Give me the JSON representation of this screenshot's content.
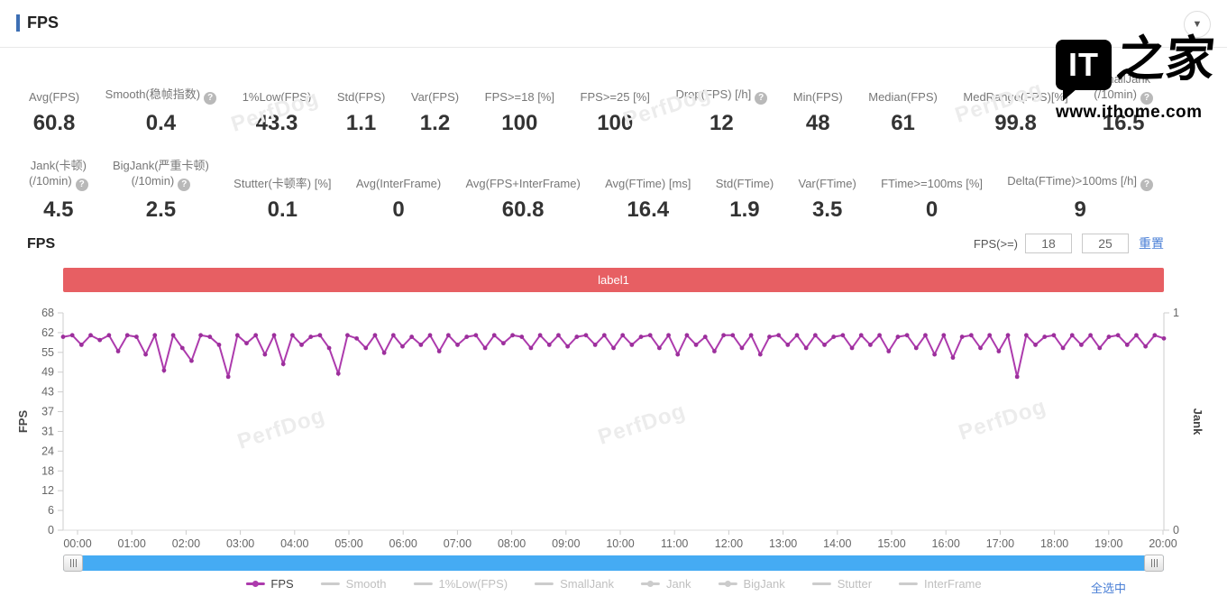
{
  "page": {
    "title": "FPS",
    "collapse_icon": "▼"
  },
  "watermark": {
    "text": "PerfDog"
  },
  "logo": {
    "it": "IT",
    "zhijia": "之家",
    "url": "www.ithome.com"
  },
  "stats": {
    "row1": [
      {
        "label": "Avg(FPS)",
        "value": "60.8"
      },
      {
        "label": "Smooth(稳帧指数)",
        "value": "0.4",
        "help": true
      },
      {
        "label": "1%Low(FPS)",
        "value": "43.3"
      },
      {
        "label": "Std(FPS)",
        "value": "1.1"
      },
      {
        "label": "Var(FPS)",
        "value": "1.2"
      },
      {
        "label": "FPS>=18 [%]",
        "value": "100"
      },
      {
        "label": "FPS>=25 [%]",
        "value": "100"
      },
      {
        "label": "Drop(FPS) [/h]",
        "value": "12",
        "help": true
      },
      {
        "label": "Min(FPS)",
        "value": "48"
      },
      {
        "label": "Median(FPS)",
        "value": "61"
      },
      {
        "label": "MedRange(FPS)[%]",
        "value": "99.8"
      },
      {
        "label": "SmallJank",
        "label2": "(/10min)",
        "value": "16.5",
        "help": true
      }
    ],
    "row2": [
      {
        "label": "Jank(卡顿)",
        "label2": "(/10min)",
        "value": "4.5",
        "help": true
      },
      {
        "label": "BigJank(严重卡顿)",
        "label2": "(/10min)",
        "value": "2.5",
        "help": true
      },
      {
        "label": "Stutter(卡顿率) [%]",
        "value": "0.1"
      },
      {
        "label": "Avg(InterFrame)",
        "value": "0"
      },
      {
        "label": "Avg(FPS+InterFrame)",
        "value": "60.8"
      },
      {
        "label": "Avg(FTime) [ms]",
        "value": "16.4"
      },
      {
        "label": "Std(FTime)",
        "value": "1.9"
      },
      {
        "label": "Var(FTime)",
        "value": "3.5"
      },
      {
        "label": "FTime>=100ms [%]",
        "value": "0"
      },
      {
        "label": "Delta(FTime)>100ms [/h]",
        "value": "9",
        "help": true
      }
    ]
  },
  "chart_section": {
    "title": "FPS",
    "filter_label": "FPS(>=)",
    "filter_low": "18",
    "filter_high": "25",
    "reset_label": "重置",
    "banner_text": "label1",
    "banner_color": "#e75f63"
  },
  "chart_data": {
    "type": "line",
    "title": "label1",
    "x_ticks": [
      "00:00",
      "01:00",
      "02:00",
      "03:00",
      "04:00",
      "05:00",
      "06:00",
      "07:00",
      "08:00",
      "09:00",
      "10:00",
      "11:00",
      "12:00",
      "13:00",
      "14:00",
      "15:00",
      "16:00",
      "17:00",
      "18:00",
      "19:00",
      "20:00"
    ],
    "y_left": {
      "label": "FPS",
      "range": [
        0,
        68
      ],
      "tick_labels": [
        0,
        6,
        12,
        18,
        24,
        31,
        37,
        43,
        49,
        55,
        62,
        68
      ]
    },
    "y_right": {
      "label": "Jank",
      "range": [
        0,
        1
      ],
      "tick_labels": [
        0,
        1
      ]
    },
    "grid": false,
    "legend_position": "bottom",
    "series": [
      {
        "name": "FPS",
        "color": "#ad3bad",
        "dot_color": "#9c2f9c",
        "sample_interval_sec": 10,
        "values": [
          60.5,
          61,
          58,
          61,
          59.5,
          61,
          56,
          61,
          60.5,
          55,
          61,
          50,
          61,
          57,
          53,
          61,
          60.5,
          58,
          48,
          61,
          58.5,
          61,
          55,
          61,
          52,
          61,
          58,
          60.5,
          61,
          57,
          49,
          61,
          60,
          57,
          61,
          55.5,
          61,
          57.5,
          60.5,
          58,
          61,
          56,
          61,
          58,
          60.5,
          61,
          57,
          61,
          58.5,
          61,
          60.5,
          57,
          61,
          58,
          61,
          57.5,
          60.5,
          61,
          58,
          61,
          57,
          61,
          58,
          60.5,
          61,
          57,
          61,
          55,
          61,
          58,
          60.5,
          56,
          61,
          61,
          57,
          61,
          55,
          60.5,
          61,
          58,
          61,
          57,
          61,
          58,
          60.5,
          61,
          57,
          61,
          58,
          61,
          56,
          60.5,
          61,
          57,
          61,
          55,
          61,
          54,
          60.5,
          61,
          57,
          61,
          56,
          61,
          48,
          61,
          58,
          60.5,
          61,
          57,
          61,
          58,
          61,
          57,
          60.5,
          61,
          58,
          61,
          57.5,
          61,
          60
        ]
      }
    ]
  },
  "legend": {
    "items": [
      {
        "label": "FPS",
        "active": true,
        "marker": "line-dot"
      },
      {
        "label": "Smooth",
        "active": false,
        "marker": "line"
      },
      {
        "label": "1%Low(FPS)",
        "active": false,
        "marker": "line"
      },
      {
        "label": "SmallJank",
        "active": false,
        "marker": "line"
      },
      {
        "label": "Jank",
        "active": false,
        "marker": "line-dot"
      },
      {
        "label": "BigJank",
        "active": false,
        "marker": "line-dot"
      },
      {
        "label": "Stutter",
        "active": false,
        "marker": "line"
      },
      {
        "label": "InterFrame",
        "active": false,
        "marker": "line"
      }
    ],
    "active_color": "#ad3bad",
    "inactive_color": "#cccccc",
    "select_all": "全选中"
  }
}
